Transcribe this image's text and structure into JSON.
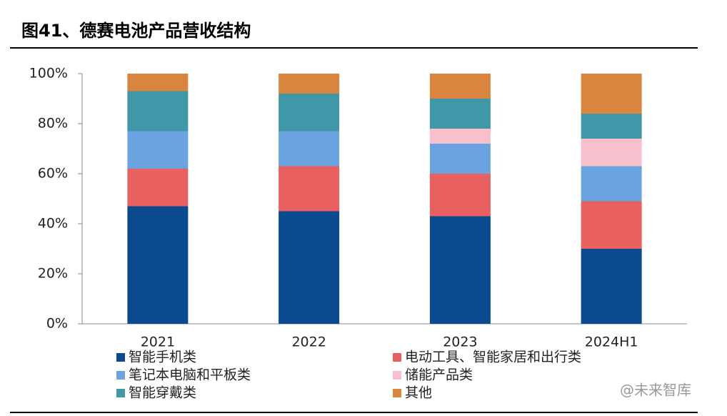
{
  "chart_data": {
    "type": "stacked_bar",
    "title": "图41、德赛电池产品营收结构",
    "categories": [
      "2021",
      "2022",
      "2023",
      "2024H1"
    ],
    "series": [
      {
        "name": "智能手机类",
        "color": "#0b4a8f",
        "values": [
          47,
          45,
          43,
          30
        ]
      },
      {
        "name": "电动工具、智能家居和出行类",
        "color": "#e8605f",
        "values": [
          15,
          18,
          17,
          19
        ]
      },
      {
        "name": "笔记本电脑和平板类",
        "color": "#6aa3e0",
        "values": [
          15,
          14,
          12,
          14
        ]
      },
      {
        "name": "储能产品类",
        "color": "#f7c0cc",
        "values": [
          0,
          0,
          6,
          11
        ]
      },
      {
        "name": "智能穿戴类",
        "color": "#3f97a8",
        "values": [
          16,
          15,
          12,
          10
        ]
      },
      {
        "name": "其他",
        "color": "#d9853f",
        "values": [
          7,
          8,
          10,
          16
        ]
      }
    ],
    "ylim": [
      0,
      100
    ],
    "yticks": [
      {
        "value": 0,
        "label": "0%"
      },
      {
        "value": 20,
        "label": "20%"
      },
      {
        "value": 40,
        "label": "40%"
      },
      {
        "value": 60,
        "label": "60%"
      },
      {
        "value": 80,
        "label": "80%"
      },
      {
        "value": 100,
        "label": "100%"
      }
    ],
    "watermark": "@未来智库"
  }
}
